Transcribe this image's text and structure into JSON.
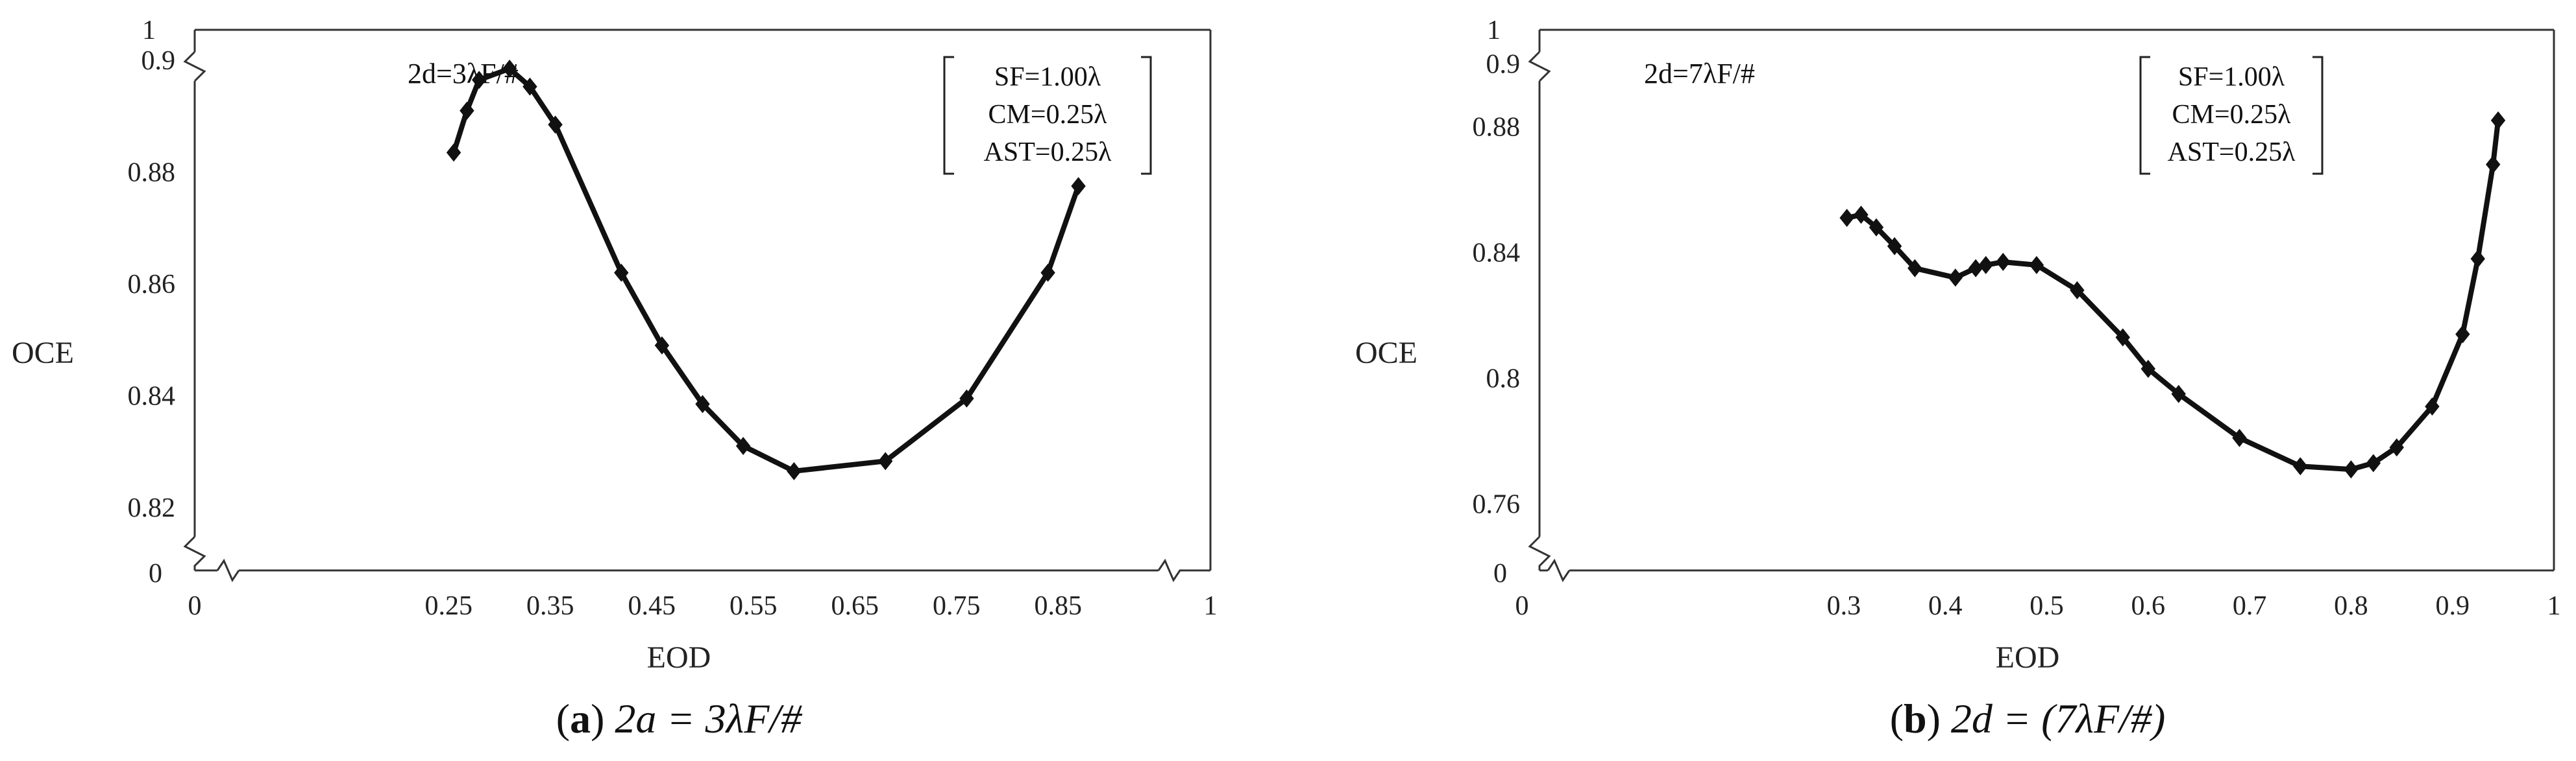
{
  "chart_data": [
    {
      "type": "line",
      "panel_label": "a",
      "caption": "2a = 3λF/#",
      "annotation": "2d=3λF/#",
      "legend_lines": [
        "SF=1.00λ",
        "CM=0.25λ",
        "AST=0.25λ"
      ],
      "xlabel": "EOD",
      "ylabel": "OCE",
      "xlim": [
        0,
        1
      ],
      "xticks": [
        0.25,
        0.35,
        0.45,
        0.55,
        0.65,
        0.75,
        0.85
      ],
      "xtick_labels": [
        "0.25",
        "0.35",
        "0.45",
        "0.55",
        "0.65",
        "0.75",
        "0.85"
      ],
      "x_end_labels": [
        "0",
        "1"
      ],
      "ylim": [
        0.815,
        0.905
      ],
      "yticks": [
        0.82,
        0.84,
        0.86,
        0.88,
        0.9
      ],
      "ytick_labels": [
        "0.82",
        "0.84",
        "0.86",
        "0.88",
        "0.9"
      ],
      "y_end_labels": [
        "0",
        "1"
      ],
      "series": [
        {
          "name": "OCE",
          "x": [
            0.255,
            0.268,
            0.28,
            0.31,
            0.33,
            0.355,
            0.42,
            0.46,
            0.5,
            0.54,
            0.59,
            0.68,
            0.76,
            0.84,
            0.87
          ],
          "y": [
            0.8835,
            0.891,
            0.8965,
            0.8985,
            0.8953,
            0.8885,
            0.862,
            0.849,
            0.8385,
            0.831,
            0.8265,
            0.8283,
            0.8395,
            0.862,
            0.8775
          ]
        }
      ]
    },
    {
      "type": "line",
      "panel_label": "b",
      "caption": "2d = (7λF/#)",
      "annotation": "2d=7λF/#",
      "legend_lines": [
        "SF=1.00λ",
        "CM=0.25λ",
        "AST=0.25λ"
      ],
      "xlabel": "EOD",
      "ylabel": "OCE",
      "xlim": [
        0,
        1
      ],
      "xticks": [
        0.3,
        0.4,
        0.5,
        0.6,
        0.7,
        0.8,
        0.9
      ],
      "xtick_labels": [
        "0.3",
        "0.4",
        "0.5",
        "0.6",
        "0.7",
        "0.8",
        "0.9"
      ],
      "x_end_labels": [
        "0",
        "1"
      ],
      "ylim": [
        0.75,
        0.91
      ],
      "yticks": [
        0.76,
        0.8,
        0.84,
        0.88,
        0.9
      ],
      "ytick_labels": [
        "0.76",
        "0.8",
        "0.84",
        "0.88",
        "0.9"
      ],
      "y_end_labels": [
        "0",
        "1"
      ],
      "series": [
        {
          "name": "OCE",
          "x": [
            0.303,
            0.317,
            0.332,
            0.35,
            0.37,
            0.41,
            0.43,
            0.44,
            0.457,
            0.49,
            0.53,
            0.575,
            0.6,
            0.63,
            0.69,
            0.75,
            0.8,
            0.822,
            0.845,
            0.88,
            0.91,
            0.925,
            0.94,
            0.945
          ],
          "y": [
            0.851,
            0.852,
            0.848,
            0.842,
            0.835,
            0.832,
            0.835,
            0.836,
            0.837,
            0.836,
            0.828,
            0.813,
            0.803,
            0.795,
            0.781,
            0.772,
            0.771,
            0.773,
            0.778,
            0.791,
            0.814,
            0.838,
            0.868,
            0.882
          ]
        }
      ]
    }
  ]
}
